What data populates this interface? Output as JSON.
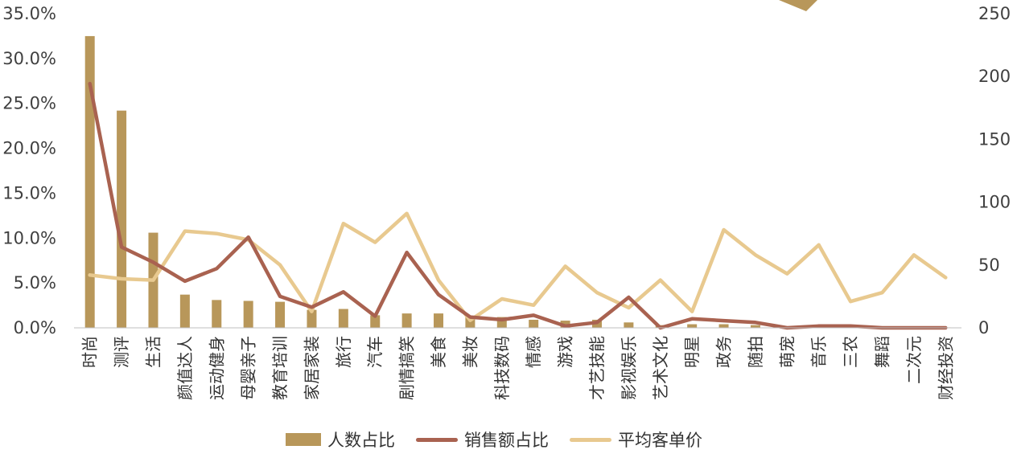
{
  "chart_data": {
    "type": "bar",
    "categories": [
      "时尚",
      "测评",
      "生活",
      "颜值达人",
      "运动健身",
      "母婴亲子",
      "教育培训",
      "家居家装",
      "旅行",
      "汽车",
      "剧情搞笑",
      "美食",
      "美妆",
      "科技数码",
      "情感",
      "游戏",
      "才艺技能",
      "影视娱乐",
      "艺术文化",
      "明星",
      "政务",
      "随拍",
      "萌宠",
      "音乐",
      "三农",
      "舞蹈",
      "二次元",
      "财经投资"
    ],
    "series": [
      {
        "name": "人数占比",
        "type": "bar",
        "axis": "left",
        "color": "#b8975a",
        "values": [
          32.5,
          24.2,
          10.6,
          3.7,
          3.1,
          3.0,
          2.9,
          2.0,
          2.1,
          1.4,
          1.6,
          1.6,
          1.3,
          1.2,
          0.9,
          0.8,
          0.9,
          0.6,
          0.3,
          0.4,
          0.4,
          0.3,
          0.1,
          0.1,
          0.1,
          0.1,
          0.1,
          0.05
        ]
      },
      {
        "name": "销售额占比",
        "type": "line",
        "axis": "left",
        "color": "#a96250",
        "values": [
          27.2,
          9.0,
          7.3,
          5.2,
          6.6,
          10.1,
          3.5,
          2.3,
          4.0,
          1.3,
          8.4,
          3.7,
          1.2,
          0.9,
          1.4,
          0.2,
          0.6,
          3.4,
          0.0,
          1.0,
          0.8,
          0.6,
          0.0,
          0.2,
          0.2,
          0.0,
          0.0,
          0.0
        ]
      },
      {
        "name": "平均客单价",
        "type": "line",
        "axis": "right",
        "color": "#e8c98f",
        "values": [
          42,
          39,
          38,
          77,
          75,
          70,
          50,
          13,
          83,
          68,
          91,
          38,
          6,
          23,
          18,
          49,
          28,
          16,
          38,
          13,
          78,
          58,
          43,
          66,
          21,
          28,
          58,
          40
        ]
      }
    ],
    "y_left": {
      "min": 0,
      "max": 35,
      "step": 5,
      "ticks": [
        "0.0%",
        "5.0%",
        "10.0%",
        "15.0%",
        "20.0%",
        "25.0%",
        "30.0%",
        "35.0%"
      ]
    },
    "y_right": {
      "min": 0,
      "max": 250,
      "step": 50,
      "ticks": [
        "0",
        "50",
        "100",
        "150",
        "200",
        "250"
      ]
    },
    "legend_position": "bottom",
    "grid": false
  }
}
